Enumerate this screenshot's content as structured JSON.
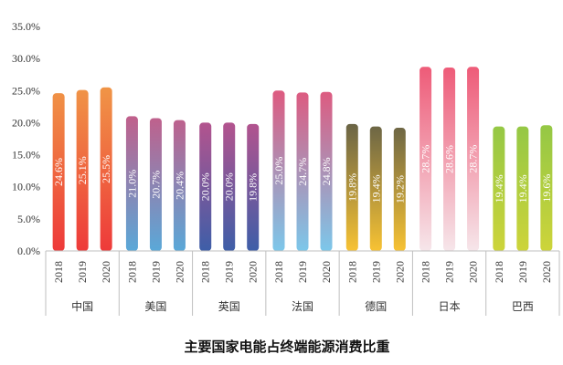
{
  "chart_data": {
    "type": "bar",
    "title": "主要国家电能占终端能源消费比重",
    "ylim": [
      0,
      35
    ],
    "yticks": [
      "0.0%",
      "5.0%",
      "10.0%",
      "15.0%",
      "20.0%",
      "25.0%",
      "30.0%",
      "35.0%"
    ],
    "years": [
      "2018",
      "2019",
      "2020"
    ],
    "groups": [
      {
        "country": "中国",
        "values": [
          24.6,
          25.1,
          25.5
        ],
        "labels": [
          "24.6%",
          "25.1%",
          "25.5%"
        ],
        "colors": [
          "#f0a048",
          "#ee3a3a"
        ]
      },
      {
        "country": "美国",
        "values": [
          21.0,
          20.7,
          20.4
        ],
        "labels": [
          "21.0%",
          "20.7%",
          "20.4%"
        ],
        "colors": [
          "#e6456f",
          "#5aa8d8"
        ]
      },
      {
        "country": "英国",
        "values": [
          20.0,
          20.0,
          19.8
        ],
        "labels": [
          "20.0%",
          "20.0%",
          "19.8%"
        ],
        "colors": [
          "#e64f83",
          "#3e5ea8"
        ]
      },
      {
        "country": "法国",
        "values": [
          25.0,
          24.7,
          24.8
        ],
        "labels": [
          "25.0%",
          "24.7%",
          "24.8%"
        ],
        "colors": [
          "#ec4a70",
          "#7cc7ea"
        ]
      },
      {
        "country": "德国",
        "values": [
          19.8,
          19.4,
          19.2
        ],
        "labels": [
          "19.8%",
          "19.4%",
          "19.2%"
        ],
        "colors": [
          "#2b3a4e",
          "#f7c233"
        ]
      },
      {
        "country": "日本",
        "values": [
          28.7,
          28.6,
          28.7
        ],
        "labels": [
          "28.7%",
          "28.6%",
          "28.7%"
        ],
        "colors": [
          "#ee5b78",
          "#f6e6ea"
        ]
      },
      {
        "country": "巴西",
        "values": [
          19.4,
          19.4,
          19.6
        ],
        "labels": [
          "19.4%",
          "19.4%",
          "19.6%"
        ],
        "colors": [
          "#7ac24a",
          "#cdd43a"
        ]
      }
    ],
    "grid": false,
    "legend": "none"
  }
}
